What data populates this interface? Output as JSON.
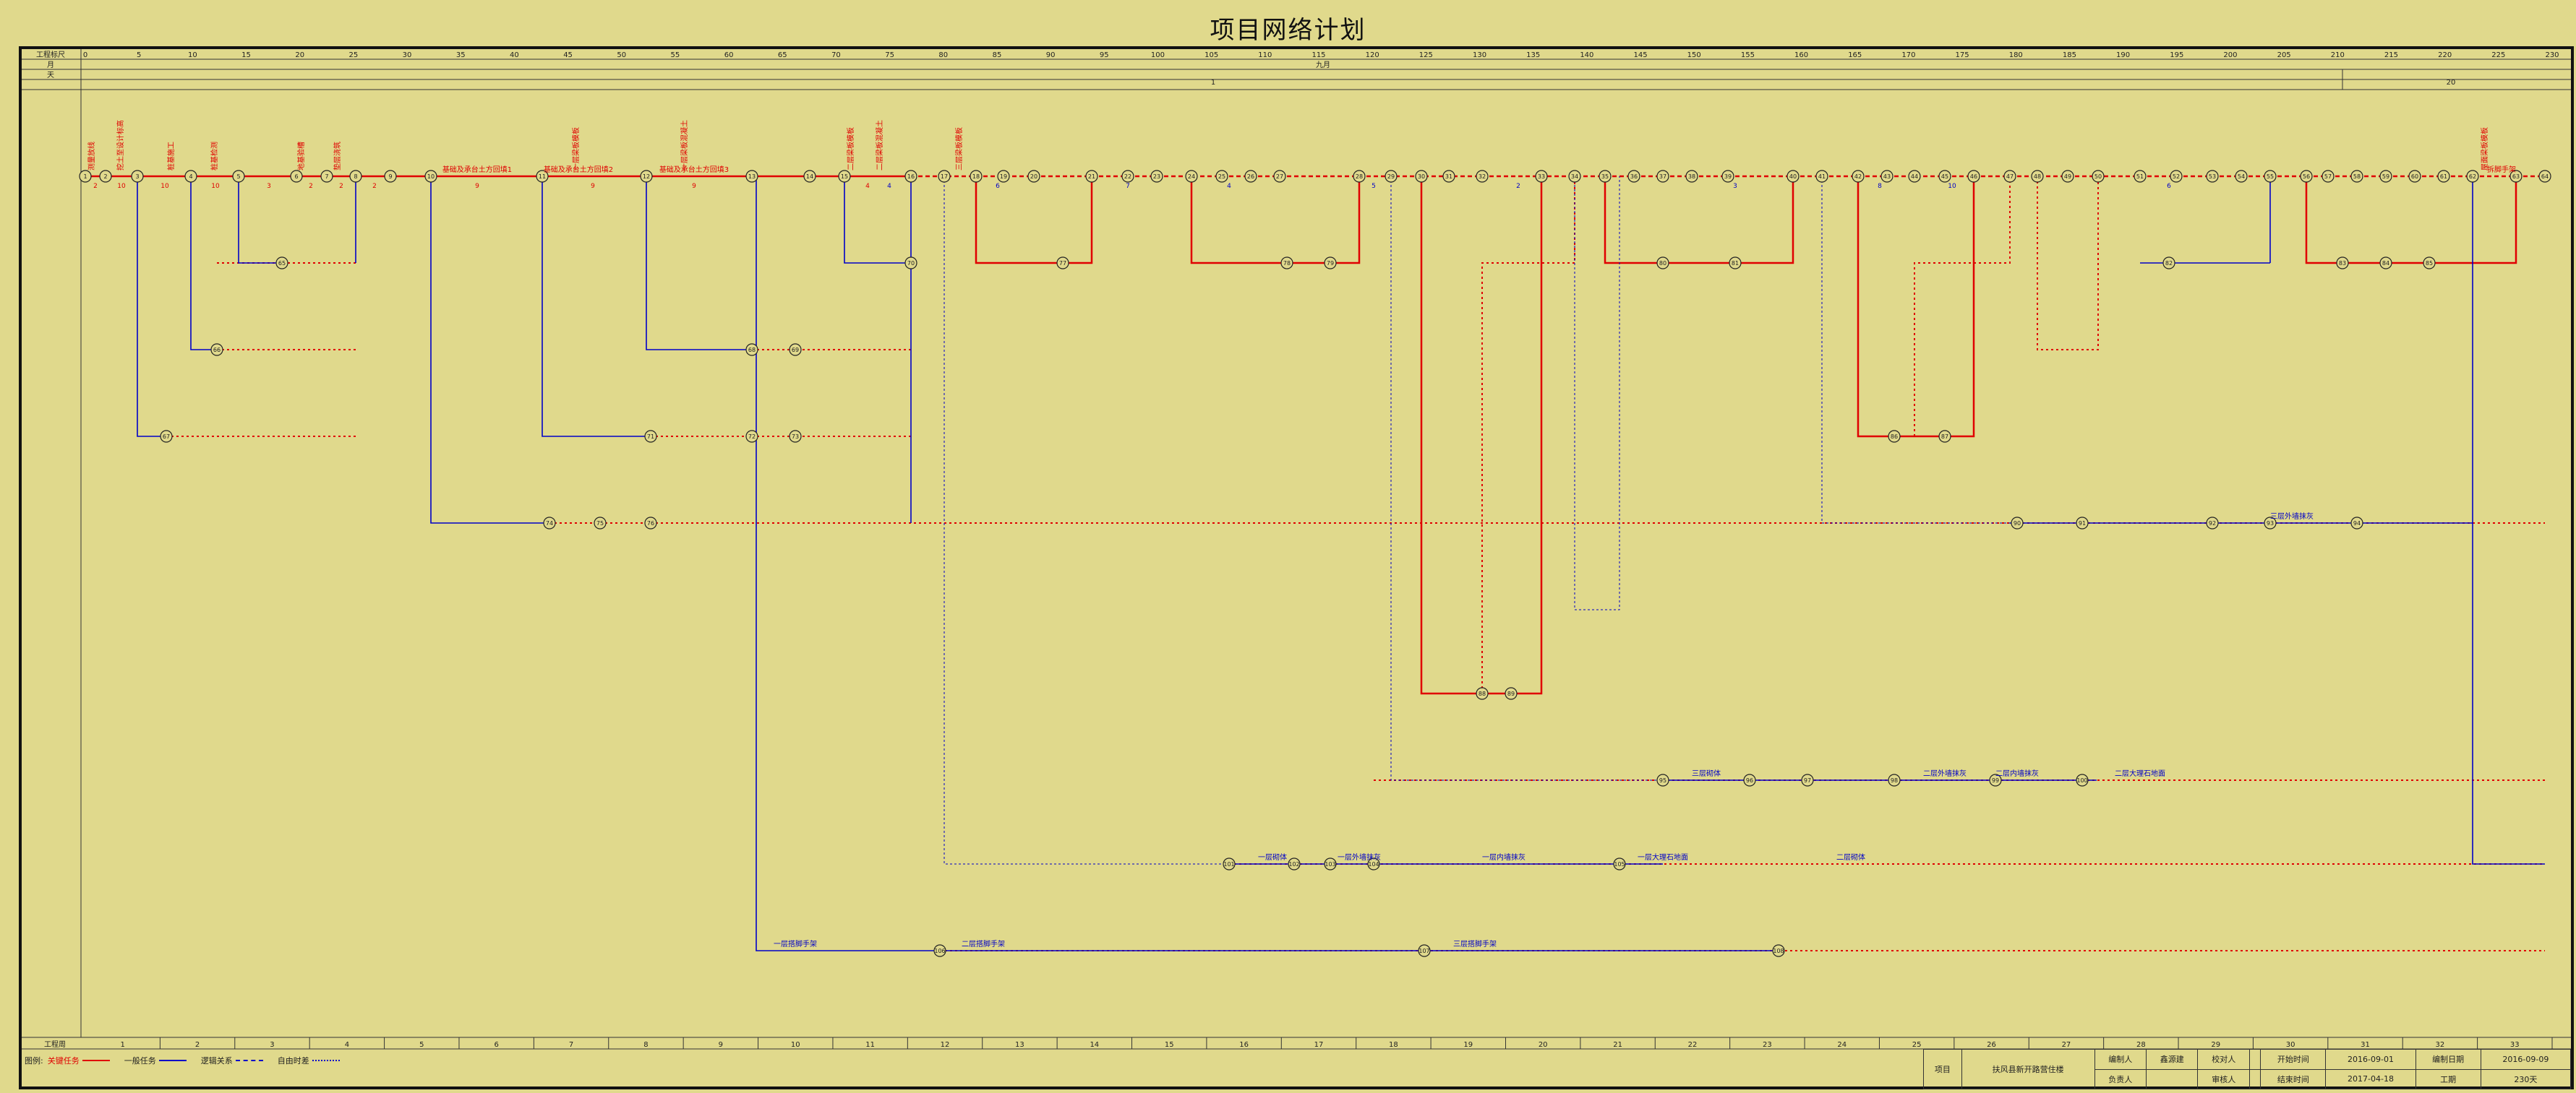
{
  "title": "项目网络计划",
  "header": {
    "row_labels": [
      "工程标尺",
      "月",
      "天"
    ],
    "month": "九月",
    "day_start": "1",
    "day_end": "20",
    "scale_ticks": [
      "0",
      "5",
      "10",
      "15",
      "20",
      "25",
      "30",
      "35",
      "40",
      "45",
      "50",
      "55",
      "60",
      "65",
      "70",
      "75",
      "80",
      "85",
      "90",
      "95",
      "100",
      "105",
      "110",
      "115",
      "120",
      "125",
      "130",
      "135",
      "140",
      "145",
      "150",
      "155",
      "160",
      "165",
      "170",
      "175",
      "180",
      "185",
      "190",
      "195",
      "200",
      "205",
      "210",
      "215",
      "220",
      "225",
      "230"
    ]
  },
  "bottom_scale": {
    "label": "工程周",
    "weeks": [
      "1",
      "2",
      "3",
      "4",
      "5",
      "6",
      "7",
      "8",
      "9",
      "10",
      "11",
      "12",
      "13",
      "14",
      "15",
      "16",
      "17",
      "18",
      "19",
      "20",
      "21",
      "22",
      "23",
      "24",
      "25",
      "26",
      "27",
      "28",
      "29",
      "30",
      "31",
      "32",
      "33"
    ]
  },
  "legend": {
    "label": "图例:",
    "items": [
      {
        "name": "关键任务",
        "color": "#e00000",
        "style": "solid"
      },
      {
        "name": "一般任务",
        "color": "#0000c8",
        "style": "solid"
      },
      {
        "name": "逻辑关系",
        "color": "#0000c8",
        "style": "dashed"
      },
      {
        "name": "自由时差",
        "color": "#0000c8",
        "style": "dotted"
      }
    ]
  },
  "info_table": {
    "project_label": "项目",
    "project_name": "扶风县新开路营住楼",
    "editor_label": "编制人",
    "editor": "鑫源建",
    "checker_label": "校对人",
    "checker": "",
    "start_label": "开始时间",
    "start": "2016-09-01",
    "date_label": "编制日期",
    "date": "2016-09-09",
    "manager_label": "负责人",
    "manager": "",
    "approver_label": "审核人",
    "approver": "",
    "end_label": "结束时间",
    "end": "2017-04-18",
    "duration_label": "工期",
    "duration": "230天"
  },
  "network": {
    "critical_labels": [
      "测量放线",
      "挖土至设计标高",
      "桩基施工",
      "桩基检测",
      "地基验槽",
      "垫层浇筑",
      "基础及承台土方回填1",
      "基础及承台土方回填2",
      "基础及承台土方回填3",
      "一层梁板模板",
      "一层梁板混凝土",
      "二层梁板模板",
      "二层梁板混凝土",
      "三层梁板模板",
      "屋面梁板模板",
      "拆脚手架"
    ],
    "normal_labels": [
      "一层砌体",
      "二层砌体",
      "三层砌体",
      "一层外墙抹灰",
      "二层外墙抹灰",
      "三层外墙抹灰",
      "一层内墙抹灰",
      "二层内墙抹灰",
      "一层大理石地面",
      "二层大理石地面",
      "一层搭脚手架",
      "二层搭脚手架",
      "三层搭脚手架"
    ],
    "durations": [
      "2",
      "10",
      "10",
      "10",
      "3",
      "2",
      "2",
      "2",
      "9",
      "9",
      "9",
      "4",
      "4",
      "6",
      "7",
      "4",
      "5",
      "2",
      "3",
      "8",
      "10",
      "6"
    ]
  }
}
